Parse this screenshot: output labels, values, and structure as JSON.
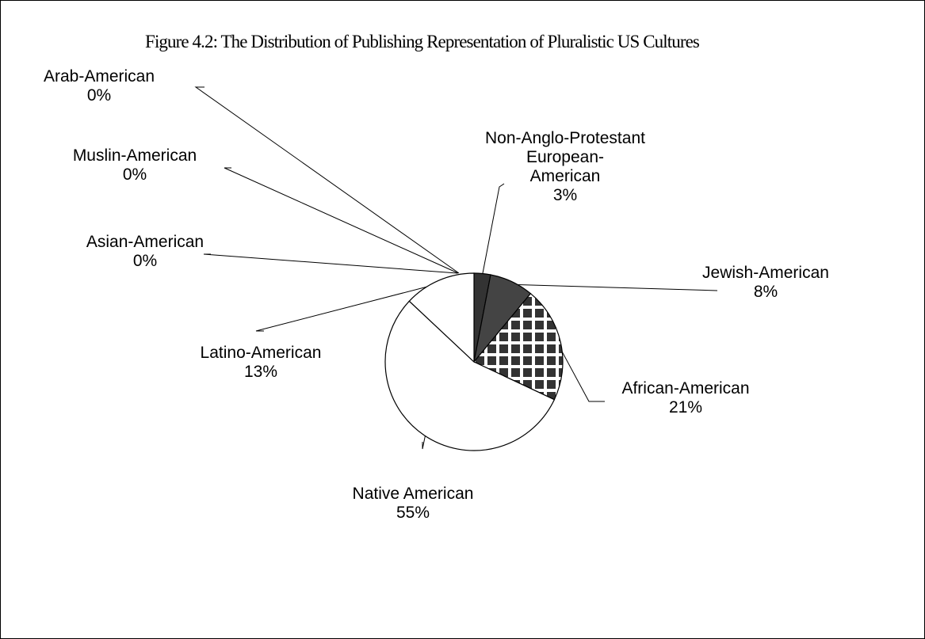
{
  "chart_data": {
    "type": "pie",
    "title": "Figure 4.2: The Distribution of Publishing Representation of Pluralistic US Cultures",
    "slices": [
      {
        "name": "Non-Anglo-Protestant\nEuropean-\nAmerican",
        "value": 3,
        "label": "3%"
      },
      {
        "name": "Jewish-American",
        "value": 8,
        "label": "8%"
      },
      {
        "name": "African-American",
        "value": 21,
        "label": "21%"
      },
      {
        "name": "Native American",
        "value": 55,
        "label": "55%"
      },
      {
        "name": "Latino-American",
        "value": 13,
        "label": "13%"
      },
      {
        "name": "Asian-American",
        "value": 0,
        "label": "0%"
      },
      {
        "name": "Muslin-American",
        "value": 0,
        "label": "0%"
      },
      {
        "name": "Arab-American",
        "value": 0,
        "label": "0%"
      }
    ]
  }
}
